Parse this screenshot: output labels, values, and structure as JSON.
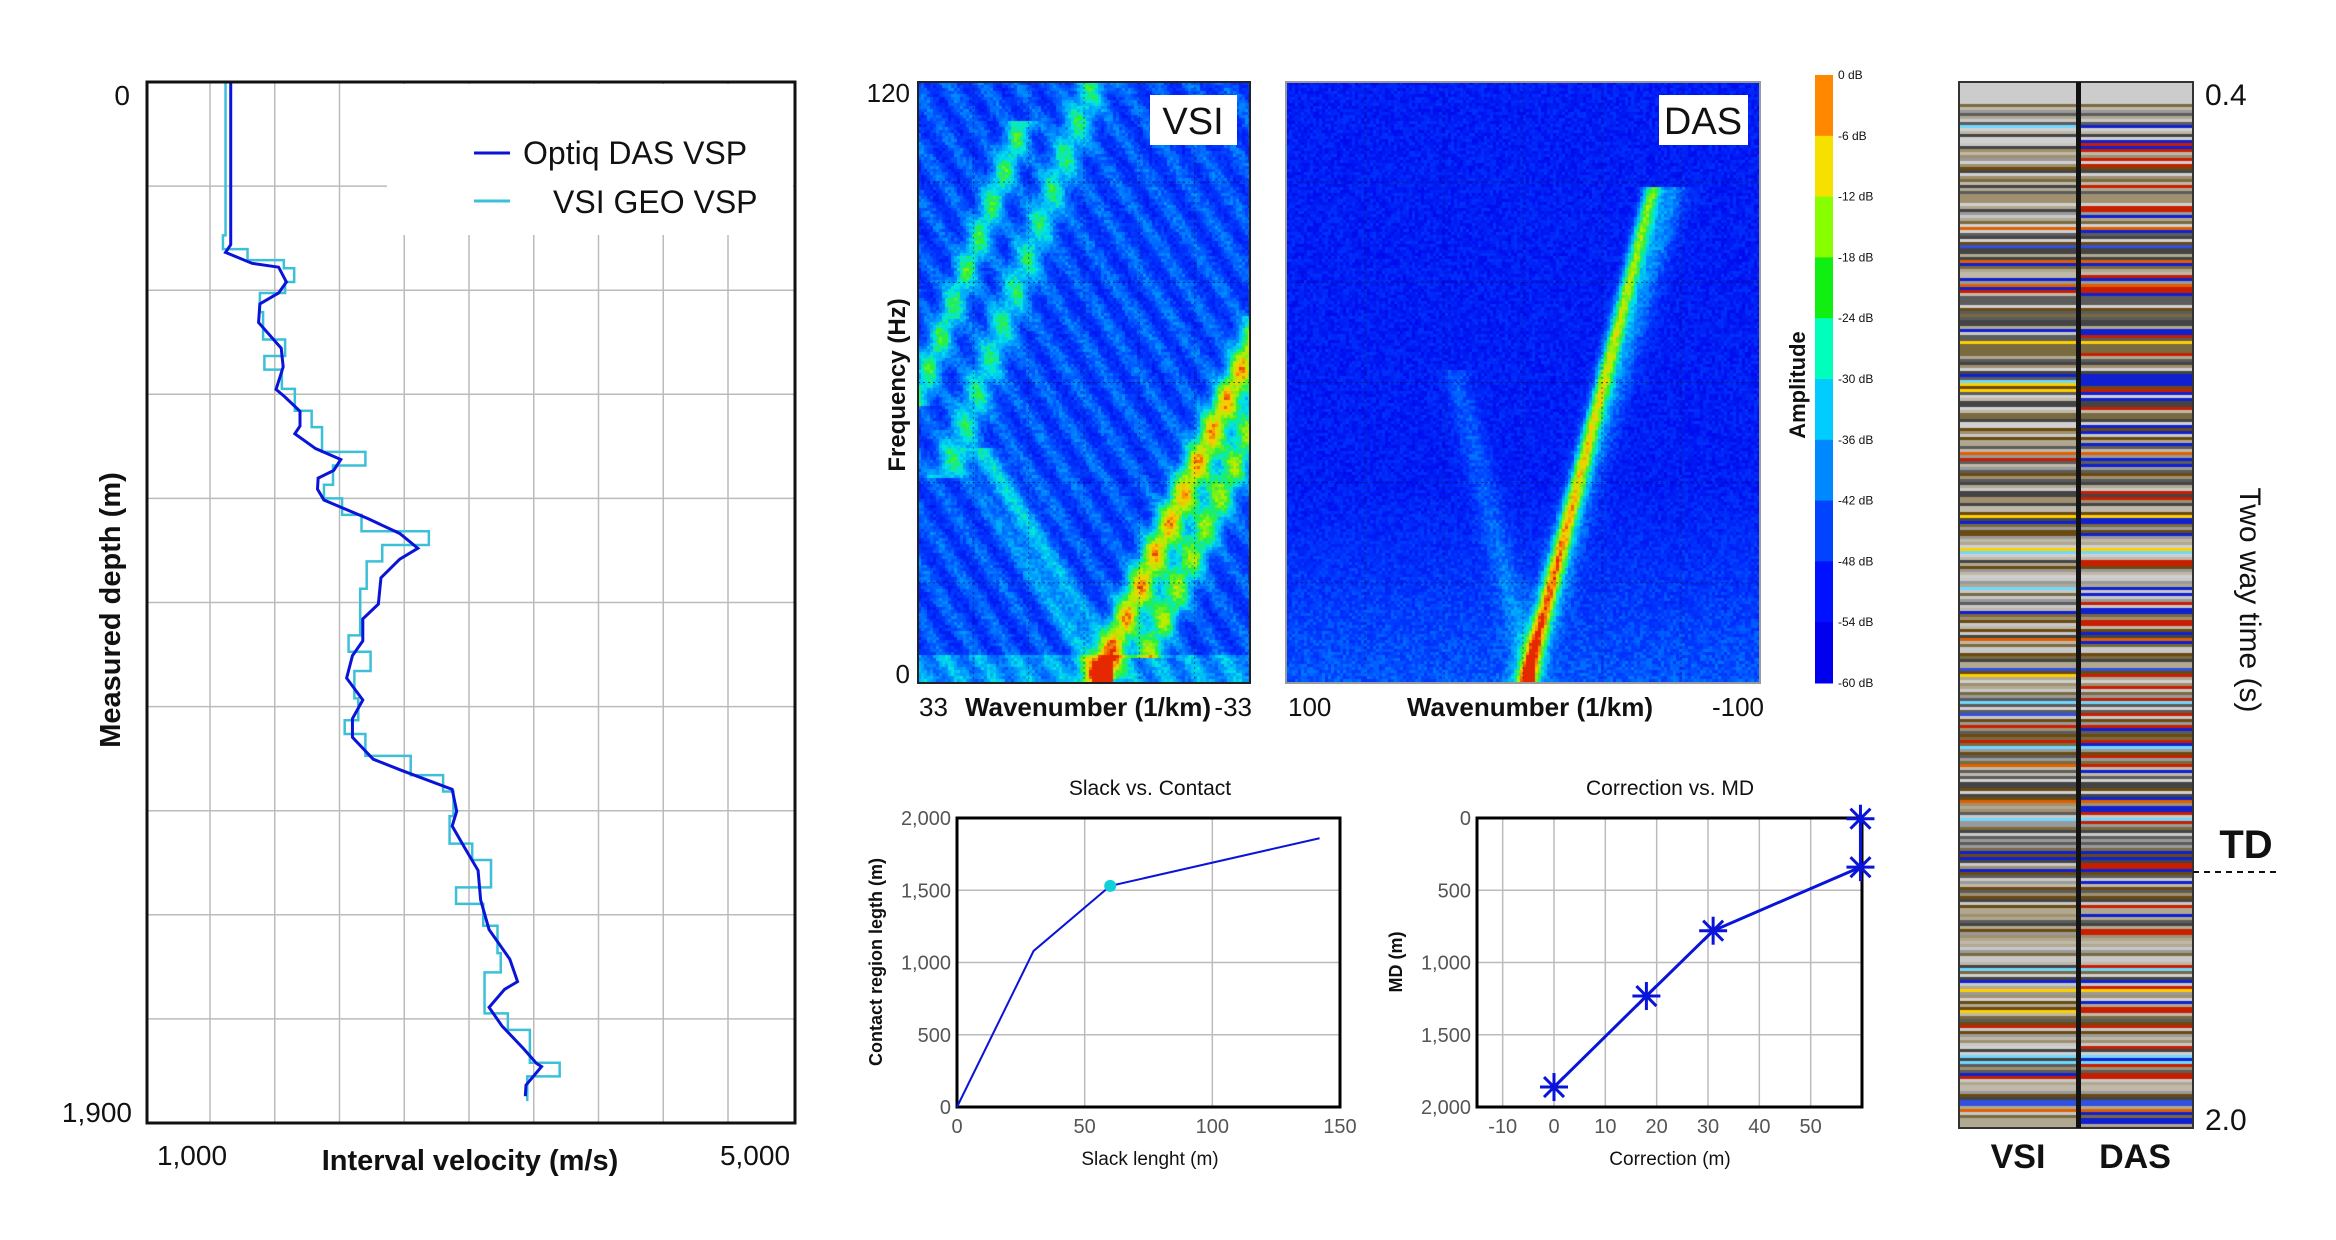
{
  "chart_data": [
    {
      "type": "line",
      "xlabel": "Interval velocity (m/s)",
      "ylabel": "Measured depth (m)",
      "xlim": [
        520,
        5500
      ],
      "ylim": [
        1900,
        0
      ],
      "x_tick_labels": [
        "1,000",
        "5,000"
      ],
      "y_tick_labels": [
        "0",
        "1,900"
      ],
      "x_grid": [
        1000,
        1500,
        2000,
        2500,
        3000,
        3500,
        4000,
        4500,
        5000
      ],
      "y_grid": [
        190,
        380,
        570,
        760,
        950,
        1140,
        1330,
        1520,
        1710
      ],
      "grid": true,
      "legend_position": "top-right",
      "series": [
        {
          "name": "Optiq DAS VSP",
          "color": "#0a14d8",
          "points": [
            [
              1160,
              0
            ],
            [
              1160,
              297
            ],
            [
              1120,
              311
            ],
            [
              1325,
              331
            ],
            [
              1530,
              338
            ],
            [
              1590,
              365
            ],
            [
              1530,
              385
            ],
            [
              1385,
              405
            ],
            [
              1375,
              439
            ],
            [
              1450,
              459
            ],
            [
              1550,
              486
            ],
            [
              1565,
              520
            ],
            [
              1510,
              561
            ],
            [
              1575,
              574
            ],
            [
              1695,
              601
            ],
            [
              1695,
              628
            ],
            [
              1655,
              642
            ],
            [
              1815,
              669
            ],
            [
              2010,
              689
            ],
            [
              1955,
              709
            ],
            [
              1835,
              723
            ],
            [
              1830,
              743
            ],
            [
              1880,
              763
            ],
            [
              2020,
              777
            ],
            [
              2220,
              797
            ],
            [
              2465,
              824
            ],
            [
              2605,
              851
            ],
            [
              2465,
              871
            ],
            [
              2320,
              905
            ],
            [
              2300,
              953
            ],
            [
              2180,
              980
            ],
            [
              2180,
              1020
            ],
            [
              2100,
              1047
            ],
            [
              2055,
              1088
            ],
            [
              2180,
              1128
            ],
            [
              2100,
              1162
            ],
            [
              2100,
              1196
            ],
            [
              2260,
              1236
            ],
            [
              2485,
              1257
            ],
            [
              2870,
              1291
            ],
            [
              2905,
              1331
            ],
            [
              2870,
              1358
            ],
            [
              2970,
              1399
            ],
            [
              3070,
              1439
            ],
            [
              3090,
              1493
            ],
            [
              3155,
              1547
            ],
            [
              3315,
              1601
            ],
            [
              3375,
              1642
            ],
            [
              3275,
              1656
            ],
            [
              3155,
              1689
            ],
            [
              3255,
              1723
            ],
            [
              3420,
              1764
            ],
            [
              3520,
              1791
            ],
            [
              3560,
              1797
            ],
            [
              3440,
              1831
            ],
            [
              3435,
              1851
            ]
          ]
        },
        {
          "name": "VSI GEO VSP",
          "color": "#3cc0d8",
          "points": [
            [
              1120,
              0
            ],
            [
              1120,
              280
            ],
            [
              1100,
              280
            ],
            [
              1100,
              305
            ],
            [
              1290,
              305
            ],
            [
              1290,
              325
            ],
            [
              1570,
              325
            ],
            [
              1570,
              340
            ],
            [
              1650,
              340
            ],
            [
              1650,
              365
            ],
            [
              1580,
              365
            ],
            [
              1580,
              385
            ],
            [
              1385,
              385
            ],
            [
              1385,
              420
            ],
            [
              1410,
              420
            ],
            [
              1410,
              470
            ],
            [
              1580,
              470
            ],
            [
              1580,
              500
            ],
            [
              1420,
              500
            ],
            [
              1420,
              525
            ],
            [
              1555,
              525
            ],
            [
              1555,
              560
            ],
            [
              1655,
              560
            ],
            [
              1655,
              600
            ],
            [
              1785,
              600
            ],
            [
              1785,
              630
            ],
            [
              1865,
              630
            ],
            [
              1865,
              675
            ],
            [
              2200,
              675
            ],
            [
              2200,
              700
            ],
            [
              1950,
              700
            ],
            [
              1950,
              735
            ],
            [
              1880,
              735
            ],
            [
              1880,
              760
            ],
            [
              2020,
              760
            ],
            [
              2020,
              790
            ],
            [
              2170,
              790
            ],
            [
              2170,
              820
            ],
            [
              2690,
              820
            ],
            [
              2690,
              845
            ],
            [
              2330,
              845
            ],
            [
              2330,
              875
            ],
            [
              2210,
              875
            ],
            [
              2210,
              925
            ],
            [
              2160,
              925
            ],
            [
              2160,
              1010
            ],
            [
              2070,
              1010
            ],
            [
              2070,
              1040
            ],
            [
              2240,
              1040
            ],
            [
              2240,
              1075
            ],
            [
              2115,
              1075
            ],
            [
              2115,
              1125
            ],
            [
              2145,
              1125
            ],
            [
              2145,
              1165
            ],
            [
              2040,
              1165
            ],
            [
              2040,
              1190
            ],
            [
              2200,
              1190
            ],
            [
              2200,
              1230
            ],
            [
              2550,
              1230
            ],
            [
              2550,
              1265
            ],
            [
              2800,
              1265
            ],
            [
              2800,
              1295
            ],
            [
              2880,
              1295
            ],
            [
              2880,
              1340
            ],
            [
              2850,
              1340
            ],
            [
              2850,
              1390
            ],
            [
              3025,
              1390
            ],
            [
              3025,
              1420
            ],
            [
              3170,
              1420
            ],
            [
              3170,
              1470
            ],
            [
              2900,
              1470
            ],
            [
              2900,
              1500
            ],
            [
              3110,
              1500
            ],
            [
              3110,
              1540
            ],
            [
              3220,
              1540
            ],
            [
              3220,
              1590
            ],
            [
              3245,
              1590
            ],
            [
              3245,
              1625
            ],
            [
              3120,
              1625
            ],
            [
              3120,
              1700
            ],
            [
              3300,
              1700
            ],
            [
              3300,
              1730
            ],
            [
              3470,
              1730
            ],
            [
              3470,
              1790
            ],
            [
              3700,
              1790
            ],
            [
              3700,
              1815
            ],
            [
              3450,
              1815
            ],
            [
              3450,
              1860
            ]
          ]
        }
      ]
    },
    {
      "type": "heatmap",
      "panels": [
        {
          "label": "VSI",
          "label_color": "#3cc0d0",
          "xlabel": "Wavenumber (1/km)",
          "xlim": [
            33,
            -33
          ],
          "x_tick_labels": [
            "33",
            "-33"
          ]
        },
        {
          "label": "DAS",
          "label_color": "#0a14d8",
          "xlabel": "Wavenumber (1/km)",
          "xlim": [
            100,
            -100
          ],
          "x_tick_labels": [
            "100",
            "-100"
          ]
        }
      ],
      "ylabel": "Frequency (Hz)",
      "ylim": [
        0,
        120
      ],
      "y_tick_labels": [
        "120",
        "0"
      ],
      "colorbar": {
        "label": "Amplitude",
        "ticks": [
          "0 dB",
          "-6 dB",
          "-12 dB",
          "-18 dB",
          "-24 dB",
          "-30 dB",
          "-36 dB",
          "-42 dB",
          "-48 dB",
          "-54 dB",
          "-60 dB"
        ],
        "colors": [
          "#ff8800",
          "#f5e000",
          "#88ff00",
          "#11ee11",
          "#00ffbb",
          "#00ccff",
          "#0088ff",
          "#0044ff",
          "#0011ff",
          "#0000ee"
        ]
      }
    },
    {
      "type": "line",
      "title": "Slack vs. Contact",
      "xlabel": "Slack lenght (m)",
      "ylabel": "Contact region legth (m)",
      "xlim": [
        0,
        150
      ],
      "ylim": [
        0,
        2000
      ],
      "x_ticks": [
        0,
        50,
        100,
        150
      ],
      "x_tick_labels": [
        "0",
        "50",
        "100",
        "150"
      ],
      "y_ticks": [
        0,
        500,
        1000,
        1500,
        2000
      ],
      "y_tick_labels": [
        "0",
        "500",
        "1,000",
        "1,500",
        "2,000"
      ],
      "grid": true,
      "points": [
        [
          0,
          0
        ],
        [
          30,
          1080
        ],
        [
          60,
          1530
        ],
        [
          142,
          1860
        ]
      ],
      "highlight": {
        "x": 60,
        "y": 1530,
        "color": "#10d0d8"
      },
      "color": "#0a14d8"
    },
    {
      "type": "line",
      "title": "Correction vs. MD",
      "xlabel": "Correction (m)",
      "ylabel": "MD (m)",
      "xlim": [
        -15,
        60
      ],
      "ylim": [
        2000,
        0
      ],
      "x_ticks": [
        -10,
        0,
        10,
        20,
        30,
        40,
        50
      ],
      "x_tick_labels": [
        "-10",
        "0",
        "10",
        "20",
        "30",
        "40",
        "50"
      ],
      "y_ticks": [
        0,
        500,
        1000,
        1500,
        2000
      ],
      "y_tick_labels": [
        "0",
        "500",
        "1,000",
        "1,500",
        "2,000"
      ],
      "grid": true,
      "marker": "asterisk",
      "points": [
        [
          0,
          1862
        ],
        [
          18,
          1232
        ],
        [
          31,
          780
        ],
        [
          59.7,
          340
        ],
        [
          59.7,
          5
        ]
      ],
      "color": "#0a14d8"
    },
    {
      "type": "heatmap",
      "columns": [
        {
          "label": "VSI",
          "color": "#3cc0d0"
        },
        {
          "label": "DAS",
          "color": "#0a14d8"
        }
      ],
      "ylabel": "Two way time (s)",
      "ylim": [
        0.4,
        2.0
      ],
      "y_tick_labels": [
        "0.4",
        "2.0"
      ],
      "annotation": {
        "label": "TD"
      }
    }
  ]
}
